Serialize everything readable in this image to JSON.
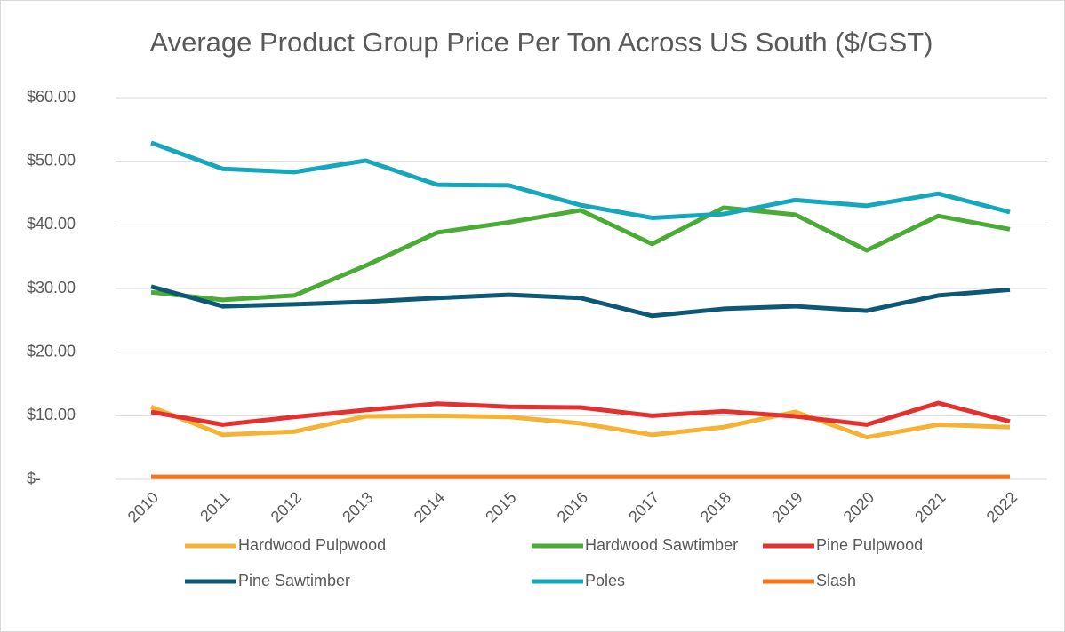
{
  "chart_data": {
    "type": "line",
    "title": "Average Product Group Price Per Ton Across US South ($/GST)",
    "categories": [
      "2010",
      "2011",
      "2012",
      "2013",
      "2014",
      "2015",
      "2016",
      "2017",
      "2018",
      "2019",
      "2020",
      "2021",
      "2022"
    ],
    "series": [
      {
        "name": "Hardwood Pulpwood",
        "color": "#f5b335",
        "values": [
          11.4,
          7.0,
          7.5,
          9.9,
          10.0,
          9.8,
          8.8,
          7.0,
          8.2,
          10.6,
          6.6,
          8.6,
          8.2
        ]
      },
      {
        "name": "Hardwood Sawtimber",
        "color": "#4aab35",
        "values": [
          29.4,
          28.2,
          28.9,
          33.6,
          38.8,
          40.4,
          42.3,
          37.0,
          42.7,
          41.6,
          36.0,
          41.4,
          39.3
        ]
      },
      {
        "name": "Pine Pulpwood",
        "color": "#e3312f",
        "values": [
          10.6,
          8.6,
          9.8,
          10.9,
          11.9,
          11.4,
          11.3,
          10.0,
          10.7,
          9.9,
          8.6,
          12.0,
          9.1
        ]
      },
      {
        "name": "Pine Sawtimber",
        "color": "#0d5975",
        "values": [
          30.3,
          27.2,
          27.5,
          27.9,
          28.5,
          29.0,
          28.5,
          25.7,
          26.8,
          27.2,
          26.5,
          28.9,
          29.8
        ]
      },
      {
        "name": "Poles",
        "color": "#16a7bd",
        "values": [
          52.9,
          48.8,
          48.3,
          50.1,
          46.3,
          46.2,
          43.1,
          41.1,
          41.7,
          43.9,
          43.0,
          44.9,
          42.0
        ]
      },
      {
        "name": "Slash",
        "color": "#f7741a",
        "values": [
          0.4,
          0.4,
          0.4,
          0.4,
          0.4,
          0.4,
          0.4,
          0.4,
          0.4,
          0.4,
          0.4,
          0.4,
          0.4
        ]
      }
    ],
    "ylim": [
      0,
      60
    ],
    "yticks": [
      {
        "value": 0,
        "label": "$-"
      },
      {
        "value": 10,
        "label": "$10.00"
      },
      {
        "value": 20,
        "label": "$20.00"
      },
      {
        "value": 30,
        "label": "$30.00"
      },
      {
        "value": 40,
        "label": "$40.00"
      },
      {
        "value": 50,
        "label": "$50.00"
      },
      {
        "value": 60,
        "label": "$60.00"
      }
    ],
    "grid": true,
    "legend": "bottom"
  }
}
